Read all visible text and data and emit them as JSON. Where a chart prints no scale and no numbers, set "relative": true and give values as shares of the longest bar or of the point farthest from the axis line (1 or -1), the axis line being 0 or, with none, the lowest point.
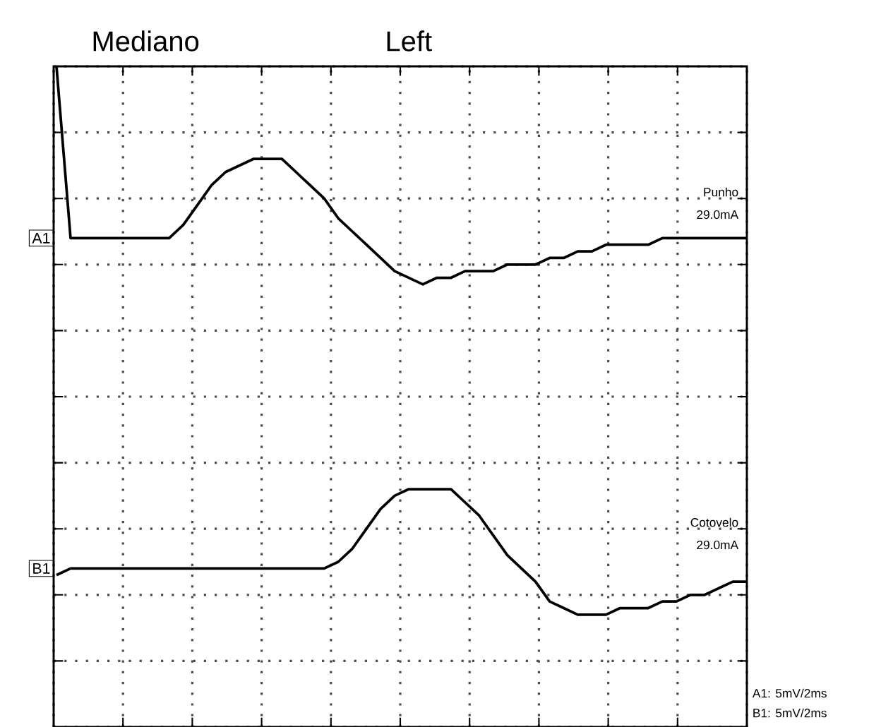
{
  "chart_data": {
    "type": "line",
    "title": "Mediano",
    "subtitle": "Left",
    "relative": true,
    "grid": true,
    "marker": "none",
    "line_style": "solid",
    "categories": [
      null,
      null,
      null,
      null,
      null,
      null,
      null,
      null,
      null,
      null,
      null,
      null,
      null,
      null,
      null,
      null,
      null,
      null,
      null,
      null,
      null,
      null,
      null,
      null,
      null,
      null,
      null,
      null,
      null,
      null,
      null,
      null,
      null,
      null,
      null,
      null,
      null,
      null,
      null,
      null,
      null,
      null,
      null,
      null,
      null,
      null,
      null,
      null,
      null,
      null
    ],
    "series": [
      {
        "name": "A1",
        "color": "#000000",
        "values": [
          1.0,
          0.74,
          0.74,
          0.74,
          0.74,
          0.74,
          0.74,
          0.74,
          0.74,
          0.76,
          0.79,
          0.82,
          0.84,
          0.85,
          0.86,
          0.86,
          0.86,
          0.84,
          0.82,
          0.8,
          0.77,
          0.75,
          0.73,
          0.71,
          0.69,
          0.68,
          0.67,
          0.68,
          0.68,
          0.69,
          0.69,
          0.69,
          0.7,
          0.7,
          0.7,
          0.71,
          0.71,
          0.72,
          0.72,
          0.73,
          0.73,
          0.73,
          0.73,
          0.74,
          0.74,
          0.74,
          0.74,
          0.74,
          0.74,
          0.74
        ]
      },
      {
        "name": "B1",
        "color": "#000000",
        "values": [
          0.23,
          0.24,
          0.24,
          0.24,
          0.24,
          0.24,
          0.24,
          0.24,
          0.24,
          0.24,
          0.24,
          0.24,
          0.24,
          0.24,
          0.24,
          0.24,
          0.24,
          0.24,
          0.24,
          0.24,
          0.25,
          0.27,
          0.3,
          0.33,
          0.35,
          0.36,
          0.36,
          0.36,
          0.36,
          0.34,
          0.32,
          0.29,
          0.26,
          0.24,
          0.22,
          0.19,
          0.18,
          0.17,
          0.17,
          0.17,
          0.18,
          0.18,
          0.18,
          0.19,
          0.19,
          0.2,
          0.2,
          0.21,
          0.22,
          0.22
        ]
      }
    ],
    "annotations": [
      "Punho",
      "29.0mA",
      "Cotovelo",
      "29.0mA",
      "A1: 5mV/2ms",
      "B1: 5mV/2ms"
    ]
  }
}
